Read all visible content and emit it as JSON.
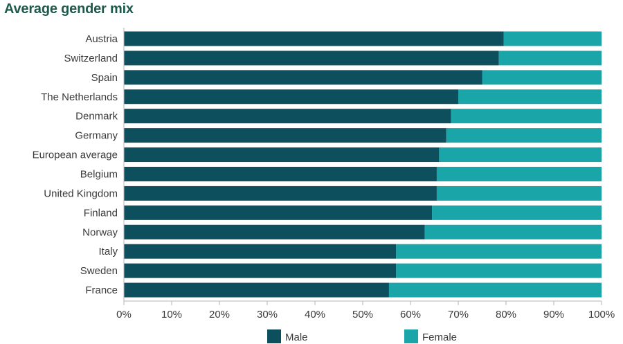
{
  "chart_data": {
    "type": "bar",
    "orientation": "horizontal",
    "stacked": true,
    "title": "Average gender mix",
    "categories": [
      "Austria",
      "Switzerland",
      "Spain",
      "The Netherlands",
      "Denmark",
      "Germany",
      "European average",
      "Belgium",
      "United Kingdom",
      "Finland",
      "Norway",
      "Italy",
      "Sweden",
      "France"
    ],
    "series": [
      {
        "name": "Male",
        "values": [
          79.5,
          78.5,
          75,
          70,
          68.5,
          67.5,
          66,
          65.5,
          65.5,
          64.5,
          63,
          57,
          57,
          55.5
        ]
      },
      {
        "name": "Female",
        "values": [
          20.5,
          21.5,
          25,
          30,
          31.5,
          32.5,
          34,
          34.5,
          34.5,
          35.5,
          37,
          43,
          43,
          44.5
        ]
      }
    ],
    "xlim": [
      0,
      100
    ],
    "xticks": [
      "0%",
      "10%",
      "20%",
      "30%",
      "40%",
      "50%",
      "60%",
      "70%",
      "80%",
      "90%",
      "100%"
    ],
    "legend_position": "bottom",
    "grid": false,
    "colors": {
      "Male": "#0d4f5c",
      "Female": "#1aa5a8",
      "axis": "#b5b5b5"
    }
  }
}
